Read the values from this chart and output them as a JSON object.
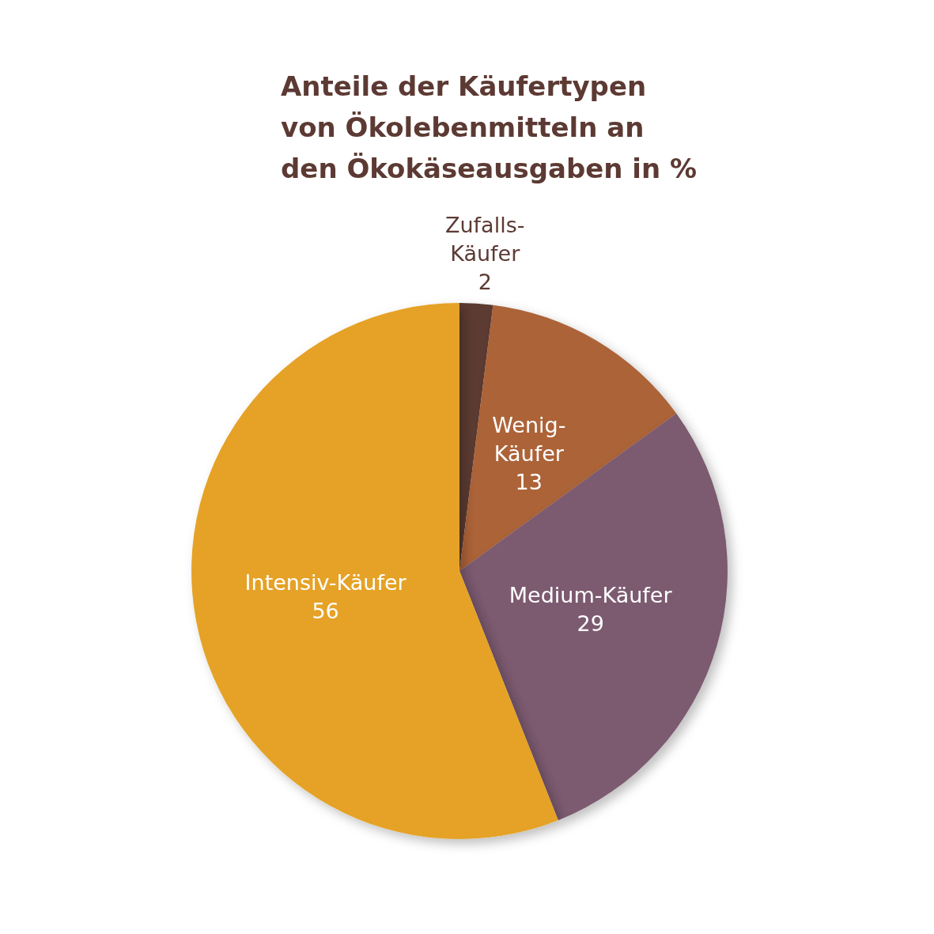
{
  "chart_data": {
    "type": "pie",
    "title": "Anteile der Käufertypen\nvon Ökolebenmitteln an\nden Ökokäseausgaben in %",
    "categories": [
      "Zufalls-\nKäufer",
      "Wenig-\nKäufer",
      "Medium-Käufer",
      "Intensiv-Käufer"
    ],
    "values": [
      2,
      13,
      29,
      56
    ],
    "colors": [
      "#5c3a33",
      "#ac6338",
      "#7c5a70",
      "#e5a226"
    ],
    "data_labels": true,
    "legend": false
  }
}
